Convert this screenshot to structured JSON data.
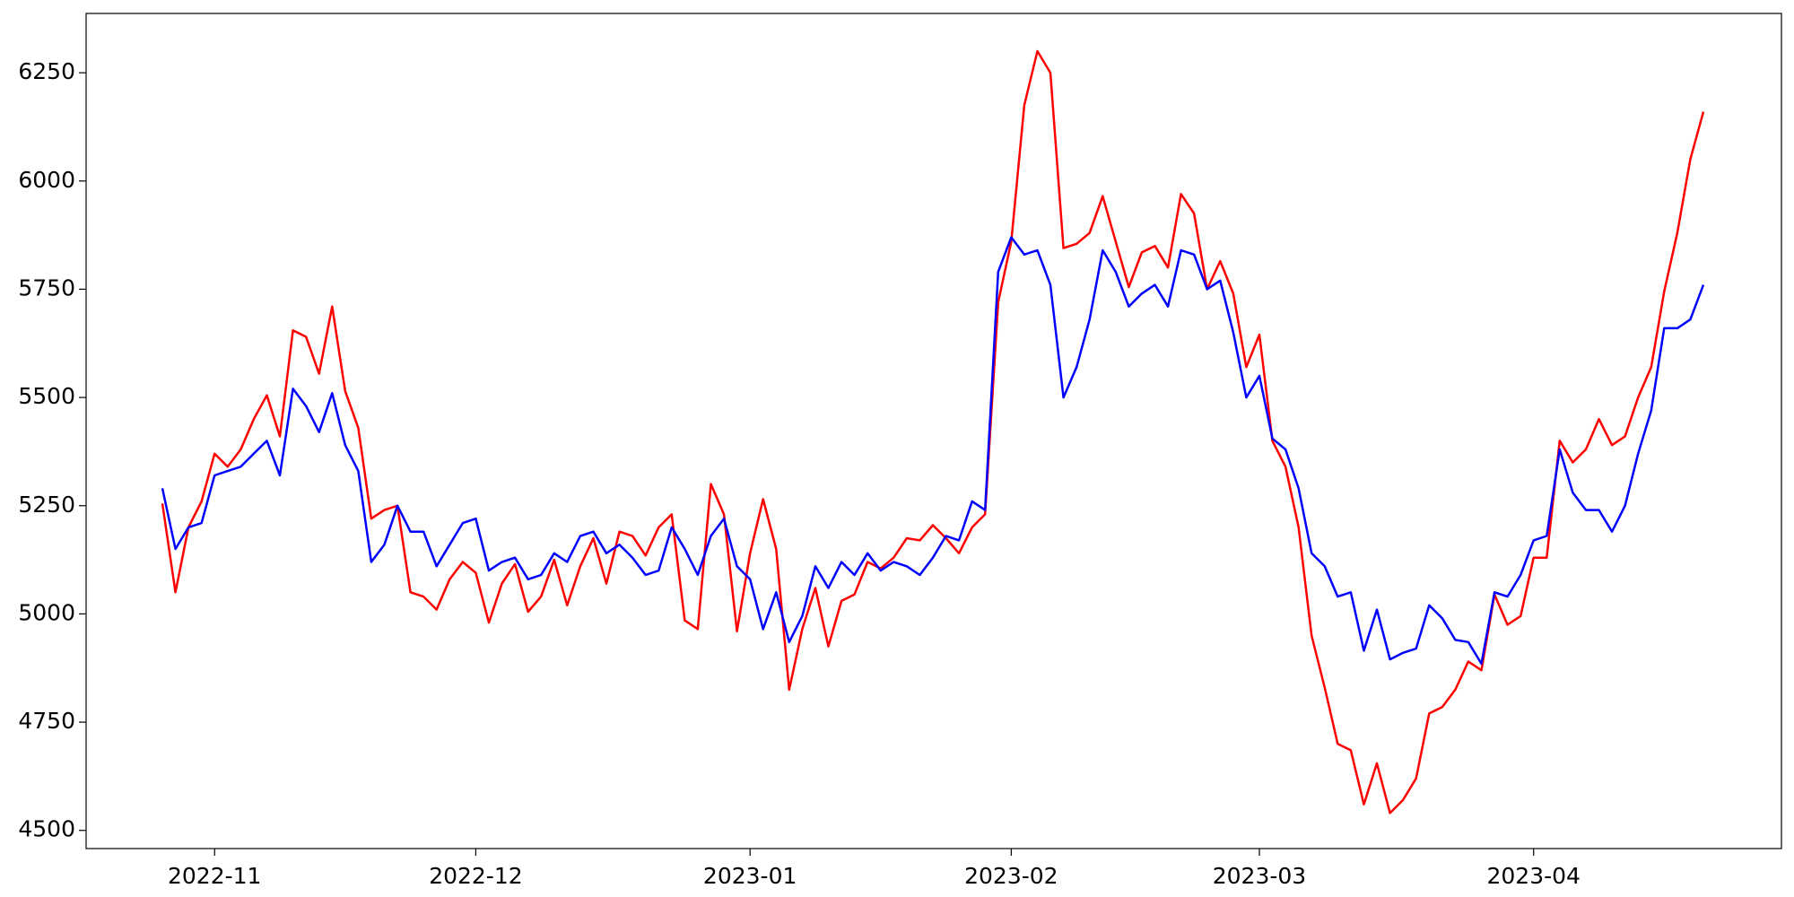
{
  "chart_data": {
    "type": "line",
    "categories": [
      null,
      null,
      null,
      null,
      "2022-11",
      null,
      null,
      null,
      null,
      null,
      null,
      null,
      null,
      null,
      null,
      null,
      null,
      null,
      null,
      null,
      null,
      null,
      null,
      null,
      "2022-12",
      null,
      null,
      null,
      null,
      null,
      null,
      null,
      null,
      null,
      null,
      null,
      null,
      null,
      null,
      null,
      null,
      null,
      null,
      null,
      null,
      "2023-01",
      null,
      null,
      null,
      null,
      null,
      null,
      null,
      null,
      null,
      null,
      null,
      null,
      null,
      null,
      null,
      null,
      null,
      null,
      null,
      "2023-02",
      null,
      null,
      null,
      null,
      null,
      null,
      null,
      null,
      null,
      null,
      null,
      null,
      null,
      null,
      null,
      null,
      null,
      null,
      "2023-03",
      null,
      null,
      null,
      null,
      null,
      null,
      null,
      null,
      null,
      null,
      null,
      null,
      null,
      null,
      null,
      null,
      null,
      null,
      null,
      null,
      "2023-04",
      null,
      null,
      null,
      null,
      null,
      null,
      null,
      null,
      null,
      null,
      null,
      null,
      null
    ],
    "series": [
      {
        "name": "red",
        "color": "#ff0000",
        "values": [
          5255,
          5050,
          5200,
          5260,
          5370,
          5340,
          5380,
          5450,
          5505,
          5410,
          5655,
          5640,
          5555,
          5710,
          5515,
          5430,
          5220,
          5240,
          5250,
          5050,
          5040,
          5010,
          5080,
          5120,
          5095,
          4980,
          5070,
          5115,
          5005,
          5040,
          5125,
          5020,
          5110,
          5175,
          5070,
          5190,
          5180,
          5135,
          5200,
          5230,
          4985,
          4965,
          5300,
          5230,
          4960,
          5140,
          5265,
          5150,
          4825,
          4965,
          5060,
          4925,
          5030,
          5045,
          5120,
          5105,
          5130,
          5175,
          5170,
          5205,
          5175,
          5140,
          5200,
          5230,
          5720,
          5860,
          6175,
          6300,
          6250,
          5845,
          5855,
          5880,
          5965,
          5860,
          5755,
          5835,
          5850,
          5800,
          5970,
          5925,
          5750,
          5815,
          5740,
          5570,
          5645,
          5400,
          5340,
          5200,
          4950,
          4830,
          4700,
          4685,
          4560,
          4655,
          4540,
          4570,
          4620,
          4770,
          4785,
          4825,
          4890,
          4870,
          5045,
          4975,
          4995,
          5130,
          5130,
          5400,
          5350,
          5380,
          5450,
          5390,
          5410,
          5500,
          5570,
          5745,
          5880,
          6050,
          6160
        ]
      },
      {
        "name": "blue",
        "color": "#0000ff",
        "values": [
          5290,
          5150,
          5200,
          5210,
          5320,
          5330,
          5340,
          5370,
          5400,
          5320,
          5520,
          5480,
          5420,
          5510,
          5390,
          5330,
          5120,
          5160,
          5250,
          5190,
          5190,
          5110,
          5160,
          5210,
          5220,
          5100,
          5120,
          5130,
          5080,
          5090,
          5140,
          5120,
          5180,
          5190,
          5140,
          5160,
          5130,
          5090,
          5100,
          5200,
          5150,
          5090,
          5180,
          5220,
          5110,
          5080,
          4965,
          5050,
          4935,
          4995,
          5110,
          5060,
          5120,
          5090,
          5140,
          5100,
          5120,
          5110,
          5090,
          5130,
          5180,
          5170,
          5260,
          5240,
          5790,
          5870,
          5830,
          5840,
          5760,
          5500,
          5570,
          5680,
          5840,
          5790,
          5710,
          5740,
          5760,
          5710,
          5840,
          5830,
          5750,
          5770,
          5650,
          5500,
          5550,
          5405,
          5380,
          5290,
          5140,
          5110,
          5040,
          5050,
          4915,
          5010,
          4895,
          4910,
          4920,
          5020,
          4990,
          4940,
          4935,
          4885,
          5050,
          5040,
          5090,
          5170,
          5180,
          5380,
          5280,
          5240,
          5240,
          5190,
          5250,
          5370,
          5470,
          5660,
          5660,
          5680,
          5760
        ]
      }
    ],
    "ylim": [
      4458,
      6387
    ],
    "yticks": [
      4500,
      4750,
      5000,
      5250,
      5500,
      5750,
      6000,
      6250
    ]
  }
}
